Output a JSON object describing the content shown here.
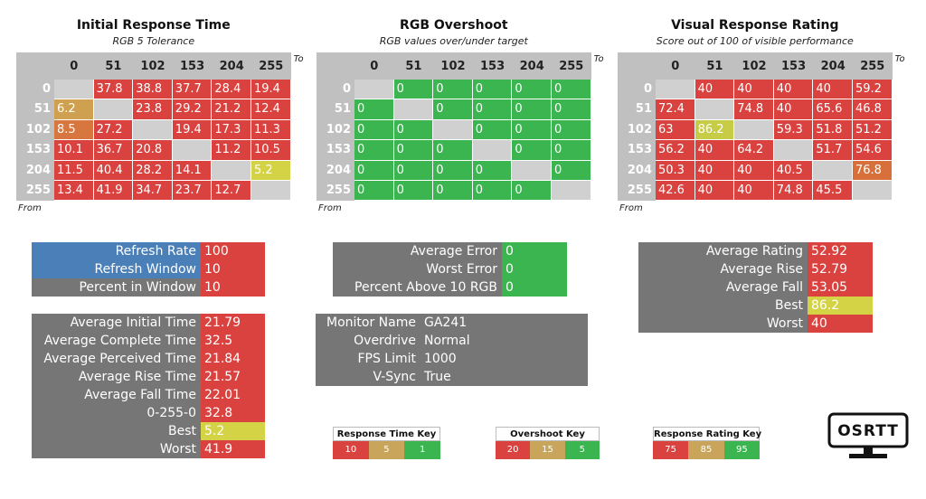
{
  "panels": [
    {
      "title": "Initial Response Time",
      "subtitle": "RGB 5 Tolerance",
      "column_label": "To",
      "row_label": "From",
      "columns": [
        0,
        51,
        102,
        153,
        204,
        255
      ],
      "empty_color": "#d0d0d0",
      "rows": [
        {
          "label": 0,
          "values": [
            null,
            37.8,
            38.8,
            37.7,
            28.4,
            19.4
          ],
          "colors": [
            null,
            "#d9423f",
            "#d9423f",
            "#d9423f",
            "#d9423f",
            "#d9423f"
          ]
        },
        {
          "label": 51,
          "values": [
            6.2,
            null,
            23.8,
            29.2,
            21.2,
            12.4
          ],
          "colors": [
            "#cfa04f",
            null,
            "#d9423f",
            "#d9423f",
            "#d9423f",
            "#d9423f"
          ]
        },
        {
          "label": 102,
          "values": [
            8.5,
            27.2,
            null,
            19.4,
            17.3,
            11.3
          ],
          "colors": [
            "#d8763f",
            "#d9423f",
            null,
            "#d9423f",
            "#d9423f",
            "#d9423f"
          ]
        },
        {
          "label": 153,
          "values": [
            10.1,
            36.7,
            20.8,
            null,
            11.2,
            10.5
          ],
          "colors": [
            "#d9423f",
            "#d9423f",
            "#d9423f",
            null,
            "#d9423f",
            "#d9423f"
          ]
        },
        {
          "label": 204,
          "values": [
            11.5,
            40.4,
            28.2,
            14.1,
            null,
            5.2
          ],
          "colors": [
            "#d9423f",
            "#d9423f",
            "#d9423f",
            "#d9423f",
            null,
            "#d4d245"
          ]
        },
        {
          "label": 255,
          "values": [
            13.4,
            41.9,
            34.7,
            23.7,
            12.7,
            null
          ],
          "colors": [
            "#d9423f",
            "#d9423f",
            "#d9423f",
            "#d9423f",
            "#d9423f",
            null
          ]
        }
      ]
    },
    {
      "title": "RGB Overshoot",
      "subtitle": "RGB values over/under target",
      "column_label": "To",
      "row_label": "From",
      "columns": [
        0,
        51,
        102,
        153,
        204,
        255
      ],
      "empty_color": "#d0d0d0",
      "rows": [
        {
          "label": 0,
          "values": [
            null,
            0,
            0,
            0,
            0,
            0
          ],
          "colors": [
            null,
            "#3bb54f",
            "#3bb54f",
            "#3bb54f",
            "#3bb54f",
            "#3bb54f"
          ]
        },
        {
          "label": 51,
          "values": [
            0,
            null,
            0,
            0,
            0,
            0
          ],
          "colors": [
            "#3bb54f",
            null,
            "#3bb54f",
            "#3bb54f",
            "#3bb54f",
            "#3bb54f"
          ]
        },
        {
          "label": 102,
          "values": [
            0,
            0,
            null,
            0,
            0,
            0
          ],
          "colors": [
            "#3bb54f",
            "#3bb54f",
            null,
            "#3bb54f",
            "#3bb54f",
            "#3bb54f"
          ]
        },
        {
          "label": 153,
          "values": [
            0,
            0,
            0,
            null,
            0,
            0
          ],
          "colors": [
            "#3bb54f",
            "#3bb54f",
            "#3bb54f",
            null,
            "#3bb54f",
            "#3bb54f"
          ]
        },
        {
          "label": 204,
          "values": [
            0,
            0,
            0,
            0,
            null,
            0
          ],
          "colors": [
            "#3bb54f",
            "#3bb54f",
            "#3bb54f",
            "#3bb54f",
            null,
            "#3bb54f"
          ]
        },
        {
          "label": 255,
          "values": [
            0,
            0,
            0,
            0,
            0,
            null
          ],
          "colors": [
            "#3bb54f",
            "#3bb54f",
            "#3bb54f",
            "#3bb54f",
            "#3bb54f",
            null
          ]
        }
      ]
    },
    {
      "title": "Visual Response Rating",
      "subtitle": "Score out of 100 of visible performance",
      "column_label": "To",
      "row_label": "From",
      "columns": [
        0,
        51,
        102,
        153,
        204,
        255
      ],
      "empty_color": "#d0d0d0",
      "rows": [
        {
          "label": 0,
          "values": [
            null,
            40,
            40,
            40,
            40,
            59.2
          ],
          "colors": [
            null,
            "#d9423f",
            "#d9423f",
            "#d9423f",
            "#d9423f",
            "#d9423f"
          ]
        },
        {
          "label": 51,
          "values": [
            72.4,
            null,
            74.8,
            40,
            65.6,
            46.8
          ],
          "colors": [
            "#d9423f",
            null,
            "#d9423f",
            "#d9423f",
            "#d9423f",
            "#d9423f"
          ]
        },
        {
          "label": 102,
          "values": [
            63,
            86.2,
            null,
            59.3,
            51.8,
            51.2
          ],
          "colors": [
            "#d9423f",
            "#c6cc46",
            null,
            "#d9423f",
            "#d9423f",
            "#d9423f"
          ]
        },
        {
          "label": 153,
          "values": [
            56.2,
            40,
            64.2,
            null,
            51.7,
            54.6
          ],
          "colors": [
            "#d9423f",
            "#d9423f",
            "#d9423f",
            null,
            "#d9423f",
            "#d9423f"
          ]
        },
        {
          "label": 204,
          "values": [
            50.3,
            40,
            40,
            40.5,
            null,
            76.8
          ],
          "colors": [
            "#d9423f",
            "#d9423f",
            "#d9423f",
            "#d9423f",
            null,
            "#d8703c"
          ]
        },
        {
          "label": 255,
          "values": [
            42.6,
            40,
            40,
            74.8,
            45.5,
            null
          ],
          "colors": [
            "#d9423f",
            "#d9423f",
            "#d9423f",
            "#d9423f",
            "#d9423f",
            null
          ]
        }
      ]
    }
  ],
  "info_boxes": [
    {
      "label_color": "#767676",
      "rows": [
        {
          "label": "Refresh Rate",
          "value": 100,
          "color": "#d9423f",
          "label_color": "#4a7fb8"
        },
        {
          "label": "Refresh Window",
          "value": 10,
          "color": "#d9423f",
          "label_color": "#4a7fb8"
        },
        {
          "label": "Percent in Window",
          "value": 10,
          "color": "#d9423f"
        }
      ]
    },
    {
      "label_color": "#767676",
      "rows": [
        {
          "label": "Average Initial Time",
          "value": 21.79,
          "color": "#d9423f"
        },
        {
          "label": "Average Complete Time",
          "value": 32.5,
          "color": "#d9423f"
        },
        {
          "label": "Average Perceived Time",
          "value": 21.84,
          "color": "#d9423f"
        },
        {
          "label": "Average Rise Time",
          "value": 21.57,
          "color": "#d9423f"
        },
        {
          "label": "Average Fall Time",
          "value": 22.01,
          "color": "#d9423f"
        },
        {
          "label": "0-255-0",
          "value": 32.8,
          "color": "#d9423f"
        },
        {
          "label": "Best",
          "value": 5.2,
          "color": "#d4d245"
        },
        {
          "label": "Worst",
          "value": 41.9,
          "color": "#d9423f"
        }
      ]
    },
    {
      "label_color": "#767676",
      "rows": [
        {
          "label": "Average Error",
          "value": 0,
          "color": "#3bb54f"
        },
        {
          "label": "Worst Error",
          "value": 0,
          "color": "#3bb54f"
        },
        {
          "label": "Percent Above 10 RGB",
          "value": 0,
          "color": "#3bb54f"
        }
      ]
    },
    {
      "label_color": "#767676",
      "rows": [
        {
          "label": "Monitor Name",
          "value": "GA241",
          "color": "#767676"
        },
        {
          "label": "Overdrive",
          "value": "Normal",
          "color": "#767676"
        },
        {
          "label": "FPS Limit",
          "value": 1000,
          "color": "#767676"
        },
        {
          "label": "V-Sync",
          "value": "True",
          "color": "#767676"
        }
      ]
    },
    {
      "label_color": "#767676",
      "rows": [
        {
          "label": "Average Rating",
          "value": 52.92,
          "color": "#d9423f"
        },
        {
          "label": "Average Rise",
          "value": 52.79,
          "color": "#d9423f"
        },
        {
          "label": "Average Fall",
          "value": 53.05,
          "color": "#d9423f"
        },
        {
          "label": "Best",
          "value": 86.2,
          "color": "#d4d245"
        },
        {
          "label": "Worst",
          "value": 40,
          "color": "#d9423f"
        }
      ]
    }
  ],
  "keys": [
    {
      "title": "Response Time Key",
      "items": [
        {
          "value": 10,
          "color": "#d9423f"
        },
        {
          "value": 5,
          "color": "#c9a55c"
        },
        {
          "value": 1,
          "color": "#3bb54f"
        }
      ]
    },
    {
      "title": "Overshoot Key",
      "items": [
        {
          "value": 20,
          "color": "#d9423f"
        },
        {
          "value": 15,
          "color": "#c9a55c"
        },
        {
          "value": 5,
          "color": "#3bb54f"
        }
      ]
    },
    {
      "title": "Response Rating Key",
      "items": [
        {
          "value": 75,
          "color": "#d9423f"
        },
        {
          "value": 85,
          "color": "#c9a55c"
        },
        {
          "value": 95,
          "color": "#3bb54f"
        }
      ]
    }
  ],
  "logo": {
    "text": "OSRTT"
  }
}
